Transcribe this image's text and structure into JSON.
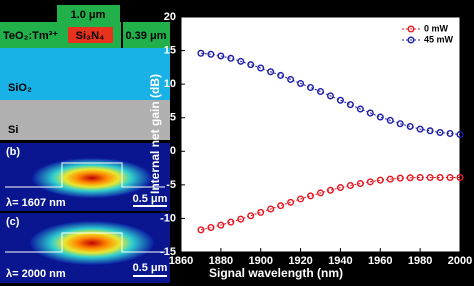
{
  "schematic": {
    "width_label": "1.0 μm",
    "cladding": "TeO₂:Tm³⁺",
    "core": "Si₃N₄",
    "height_label": "0.39 μm",
    "oxide": "SiO₂",
    "substrate": "Si"
  },
  "mode_b": {
    "tag": "(b)",
    "wavelength": "λ= 1607 nm",
    "scale": "0.5 μm"
  },
  "mode_c": {
    "tag": "(c)",
    "wavelength": "λ= 2000 nm",
    "scale": "0.5 μm"
  },
  "chart_data": {
    "type": "line",
    "x_label": "Signal wavelength (nm)",
    "y_label": "Internal net gain (dB)",
    "x": [
      1870,
      1875,
      1880,
      1885,
      1890,
      1895,
      1900,
      1905,
      1910,
      1915,
      1920,
      1925,
      1930,
      1935,
      1940,
      1945,
      1950,
      1955,
      1960,
      1965,
      1970,
      1975,
      1980,
      1985,
      1990,
      1995,
      2000
    ],
    "series": [
      {
        "name": "0 mW",
        "color": "#e8141e",
        "values": [
          -11.7,
          -11.35,
          -11.0,
          -10.55,
          -10.1,
          -9.6,
          -9.1,
          -8.6,
          -8.1,
          -7.6,
          -7.1,
          -6.65,
          -6.2,
          -5.8,
          -5.4,
          -5.1,
          -4.8,
          -4.55,
          -4.3,
          -4.15,
          -4.0,
          -3.95,
          -3.9,
          -3.9,
          -3.9,
          -3.9,
          -3.9
        ]
      },
      {
        "name": "45 mW",
        "color": "#1a1aa8",
        "values": [
          14.6,
          14.45,
          14.2,
          13.85,
          13.4,
          12.9,
          12.4,
          11.85,
          11.3,
          10.7,
          10.1,
          9.5,
          8.9,
          8.25,
          7.6,
          6.95,
          6.3,
          5.7,
          5.1,
          4.6,
          4.1,
          3.7,
          3.3,
          3.05,
          2.8,
          2.65,
          2.5
        ]
      }
    ],
    "xlim": [
      1860,
      2000
    ],
    "xticks": [
      1860,
      1880,
      1900,
      1920,
      1940,
      1960,
      1980,
      2000
    ],
    "ylim": [
      -15,
      20
    ],
    "yticks": [
      -15,
      -10,
      -5,
      0,
      5,
      10,
      15,
      20
    ],
    "legend": "upper right"
  }
}
